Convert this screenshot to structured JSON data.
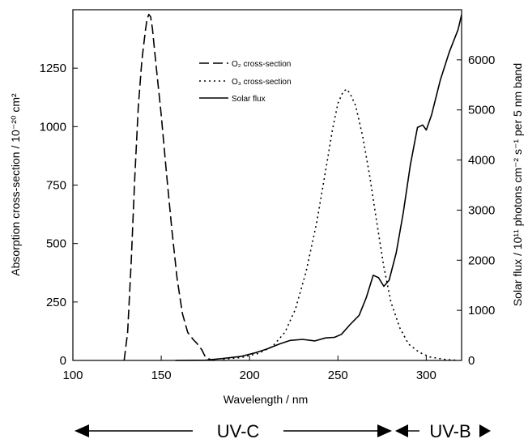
{
  "chart_data": {
    "type": "line",
    "xlabel": "Wavelength / nm",
    "ylabel_left": "Absorption cross-section / 10⁻²⁰ cm²",
    "ylabel_right": "Solar flux / 10¹¹ photons cm⁻² s⁻¹ per 5 nm band",
    "xlim": [
      100,
      320
    ],
    "ylim_left": [
      0,
      1500
    ],
    "ylim_right": [
      0,
      7000
    ],
    "x_ticks": [
      "100",
      "150",
      "200",
      "250",
      "300"
    ],
    "y_left_ticks": [
      "0",
      "250",
      "500",
      "750",
      "1000",
      "1250"
    ],
    "y_right_ticks": [
      "0",
      "1000",
      "2000",
      "3000",
      "4000",
      "5000",
      "6000"
    ],
    "grid": false,
    "legend_position": "top-center",
    "series": [
      {
        "name": "O₂ cross-section",
        "axis": "left",
        "style": "dashed",
        "points": [
          [
            129,
            0
          ],
          [
            131,
            120
          ],
          [
            133,
            420
          ],
          [
            135,
            780
          ],
          [
            137,
            1080
          ],
          [
            139,
            1280
          ],
          [
            141,
            1410
          ],
          [
            142,
            1460
          ],
          [
            143,
            1480
          ],
          [
            144,
            1470
          ],
          [
            145,
            1420
          ],
          [
            147,
            1270
          ],
          [
            150,
            1050
          ],
          [
            153,
            800
          ],
          [
            156,
            560
          ],
          [
            159,
            350
          ],
          [
            162,
            200
          ],
          [
            165,
            120
          ],
          [
            168,
            90
          ],
          [
            170,
            75
          ],
          [
            173,
            45
          ],
          [
            175,
            15
          ],
          [
            178,
            3
          ],
          [
            180,
            0
          ]
        ]
      },
      {
        "name": "O₃ cross-section",
        "axis": "left",
        "style": "dotted",
        "points": [
          [
            185,
            5
          ],
          [
            195,
            12
          ],
          [
            205,
            30
          ],
          [
            213,
            60
          ],
          [
            220,
            120
          ],
          [
            226,
            220
          ],
          [
            232,
            380
          ],
          [
            238,
            590
          ],
          [
            243,
            810
          ],
          [
            247,
            990
          ],
          [
            250,
            1100
          ],
          [
            253,
            1150
          ],
          [
            255,
            1160
          ],
          [
            257,
            1140
          ],
          [
            260,
            1090
          ],
          [
            264,
            960
          ],
          [
            268,
            790
          ],
          [
            272,
            590
          ],
          [
            276,
            400
          ],
          [
            280,
            250
          ],
          [
            285,
            140
          ],
          [
            290,
            70
          ],
          [
            296,
            35
          ],
          [
            302,
            15
          ],
          [
            310,
            5
          ],
          [
            318,
            0
          ]
        ]
      },
      {
        "name": "Solar flux",
        "axis": "right",
        "style": "solid",
        "points": [
          [
            158,
            0
          ],
          [
            175,
            5
          ],
          [
            185,
            40
          ],
          [
            195,
            80
          ],
          [
            203,
            150
          ],
          [
            210,
            230
          ],
          [
            217,
            330
          ],
          [
            223,
            400
          ],
          [
            230,
            420
          ],
          [
            237,
            390
          ],
          [
            243,
            450
          ],
          [
            248,
            460
          ],
          [
            252,
            520
          ],
          [
            257,
            720
          ],
          [
            262,
            900
          ],
          [
            266,
            1250
          ],
          [
            270,
            1700
          ],
          [
            273,
            1650
          ],
          [
            276,
            1480
          ],
          [
            279,
            1600
          ],
          [
            283,
            2150
          ],
          [
            287,
            2950
          ],
          [
            291,
            3900
          ],
          [
            295,
            4650
          ],
          [
            298,
            4700
          ],
          [
            300,
            4600
          ],
          [
            303,
            4900
          ],
          [
            308,
            5600
          ],
          [
            313,
            6150
          ],
          [
            318,
            6600
          ],
          [
            320,
            6900
          ]
        ]
      }
    ],
    "bands": [
      {
        "label": "UV-C"
      },
      {
        "label": "UV-B"
      }
    ]
  }
}
